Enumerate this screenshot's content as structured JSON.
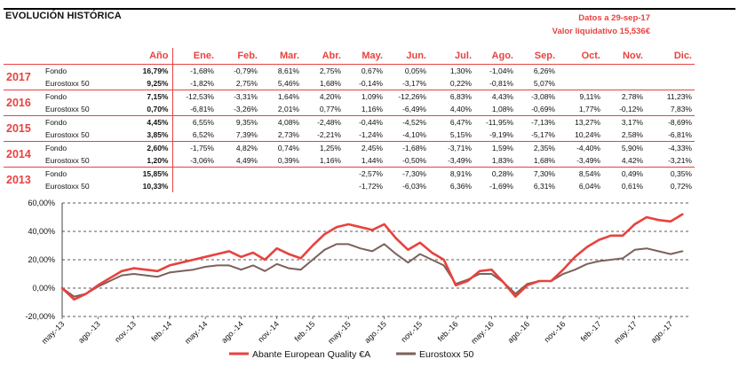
{
  "header": {
    "title": "EVOLUCIÓN HISTÓRICA",
    "date_line": "Datos a 29-sep-17",
    "nav_line": "Valor liquidativo 15,536€"
  },
  "table": {
    "columns": [
      "Año",
      "Ene.",
      "Feb.",
      "Mar.",
      "Abr.",
      "May.",
      "Jun.",
      "Jul.",
      "Ago.",
      "Sep.",
      "Oct.",
      "Nov.",
      "Dic."
    ],
    "groups": [
      {
        "year": "2017",
        "rows": [
          {
            "name": "Fondo",
            "values": [
              "16,79%",
              "-1,68%",
              "-0,79%",
              "8,61%",
              "2,75%",
              "0,67%",
              "0,05%",
              "1,30%",
              "-1,04%",
              "6,26%",
              "",
              "",
              ""
            ]
          },
          {
            "name": "Eurostoxx 50",
            "values": [
              "9,25%",
              "-1,82%",
              "2,75%",
              "5,46%",
              "1,68%",
              "-0,14%",
              "-3,17%",
              "0,22%",
              "-0,81%",
              "5,07%",
              "",
              "",
              ""
            ]
          }
        ]
      },
      {
        "year": "2016",
        "rows": [
          {
            "name": "Fondo",
            "values": [
              "7,15%",
              "-12,53%",
              "-3,31%",
              "1,64%",
              "4,20%",
              "1,09%",
              "-12,26%",
              "6,83%",
              "4,43%",
              "-3,08%",
              "9,11%",
              "2,78%",
              "11,23%"
            ]
          },
          {
            "name": "Eurostoxx 50",
            "values": [
              "0,70%",
              "-6,81%",
              "-3,26%",
              "2,01%",
              "0,77%",
              "1,16%",
              "-6,49%",
              "4,40%",
              "1,08%",
              "-0,69%",
              "1,77%",
              "-0,12%",
              "7,83%"
            ]
          }
        ]
      },
      {
        "year": "2015",
        "rows": [
          {
            "name": "Fondo",
            "values": [
              "4,45%",
              "6,55%",
              "9,35%",
              "4,08%",
              "-2,48%",
              "-0,44%",
              "-4,52%",
              "6,47%",
              "-11,95%",
              "-7,13%",
              "13,27%",
              "3,17%",
              "-8,69%"
            ]
          },
          {
            "name": "Eurostoxx 50",
            "values": [
              "3,85%",
              "6,52%",
              "7,39%",
              "2,73%",
              "-2,21%",
              "-1,24%",
              "-4,10%",
              "5,15%",
              "-9,19%",
              "-5,17%",
              "10,24%",
              "2,58%",
              "-6,81%"
            ]
          }
        ]
      },
      {
        "year": "2014",
        "rows": [
          {
            "name": "Fondo",
            "values": [
              "2,60%",
              "-1,75%",
              "4,82%",
              "0,74%",
              "1,25%",
              "2,45%",
              "-1,68%",
              "-3,71%",
              "1,59%",
              "2,35%",
              "-4,40%",
              "5,90%",
              "-4,33%"
            ]
          },
          {
            "name": "Eurostoxx 50",
            "values": [
              "1,20%",
              "-3,06%",
              "4,49%",
              "0,39%",
              "1,16%",
              "1,44%",
              "-0,50%",
              "-3,49%",
              "1,83%",
              "1,68%",
              "-3,49%",
              "4,42%",
              "-3,21%"
            ]
          }
        ]
      },
      {
        "year": "2013",
        "rows": [
          {
            "name": "Fondo",
            "values": [
              "15,85%",
              "",
              "",
              "",
              "",
              "-2,57%",
              "-7,30%",
              "8,91%",
              "0,28%",
              "7,30%",
              "8,54%",
              "0,49%",
              "0,35%"
            ]
          },
          {
            "name": "Eurostoxx 50",
            "values": [
              "10,33%",
              "",
              "",
              "",
              "",
              "-1,72%",
              "-6,03%",
              "6,36%",
              "-1,69%",
              "6,31%",
              "6,04%",
              "0,61%",
              "0,72%"
            ]
          }
        ]
      }
    ]
  },
  "chart_data": {
    "type": "line",
    "title": "",
    "xlabel": "",
    "ylabel": "",
    "ylim": [
      -20,
      60
    ],
    "y_ticks": [
      "60,00%",
      "40,00%",
      "20,00%",
      "0,00%",
      "-20,00%"
    ],
    "y_tick_values": [
      60,
      40,
      20,
      0,
      -20
    ],
    "grid": "horizontal-dashed",
    "x_ticks": [
      "may.-13",
      "ago.-13",
      "nov.-13",
      "feb.-14",
      "may.-14",
      "ago.-14",
      "nov.-14",
      "feb.-15",
      "may.-15",
      "ago.-15",
      "nov.-15",
      "feb.-16",
      "may.-16",
      "ago.-16",
      "nov.-16",
      "feb.-17",
      "may.-17",
      "ago.-17"
    ],
    "x_labels": [
      "may.-13",
      "jun.-13",
      "jul.-13",
      "ago.-13",
      "sep.-13",
      "oct.-13",
      "nov.-13",
      "dic.-13",
      "ene.-14",
      "feb.-14",
      "mar.-14",
      "abr.-14",
      "may.-14",
      "jun.-14",
      "jul.-14",
      "ago.-14",
      "sep.-14",
      "oct.-14",
      "nov.-14",
      "dic.-14",
      "ene.-15",
      "feb.-15",
      "mar.-15",
      "abr.-15",
      "may.-15",
      "jun.-15",
      "jul.-15",
      "ago.-15",
      "sep.-15",
      "oct.-15",
      "nov.-15",
      "dic.-15",
      "ene.-16",
      "feb.-16",
      "mar.-16",
      "abr.-16",
      "may.-16",
      "jun.-16",
      "jul.-16",
      "ago.-16",
      "sep.-16",
      "oct.-16",
      "nov.-16",
      "dic.-16",
      "ene.-17",
      "feb.-17",
      "mar.-17",
      "abr.-17",
      "may.-17",
      "jun.-17",
      "jul.-17",
      "ago.-17",
      "sep.-17"
    ],
    "x": [
      0,
      1,
      2,
      3,
      4,
      5,
      6,
      7,
      8,
      9,
      10,
      11,
      12,
      13,
      14,
      15,
      16,
      17,
      18,
      19,
      20,
      21,
      22,
      23,
      24,
      25,
      26,
      27,
      28,
      29,
      30,
      31,
      32,
      33,
      34,
      35,
      36,
      37,
      38,
      39,
      40,
      41,
      42,
      43,
      44,
      45,
      46,
      47,
      48,
      49,
      50,
      51,
      52
    ],
    "x_range": [
      0,
      52.5
    ],
    "series": [
      {
        "name": "Abante European Quality €A",
        "color": "#e8423f",
        "values": [
          0,
          -8,
          -4,
          2,
          7,
          12,
          14,
          13,
          12,
          16,
          18,
          20,
          22,
          24,
          26,
          22,
          25,
          20,
          28,
          24,
          21,
          30,
          38,
          43,
          45,
          43,
          41,
          45,
          35,
          27,
          32,
          25,
          20,
          2,
          5,
          12,
          13,
          4,
          -6,
          2,
          5,
          5,
          13,
          22,
          29,
          34,
          37,
          37,
          45,
          50,
          48,
          47,
          52
        ]
      },
      {
        "name": "Eurostoxx 50",
        "color": "#7b615a",
        "values": [
          0,
          -6,
          -4,
          1,
          5,
          9,
          10,
          9,
          8,
          11,
          12,
          13,
          15,
          16,
          16,
          13,
          16,
          12,
          17,
          14,
          13,
          20,
          27,
          31,
          31,
          28,
          26,
          31,
          24,
          18,
          24,
          20,
          16,
          3,
          6,
          10,
          10,
          4,
          -4,
          3,
          5,
          5,
          10,
          13,
          17,
          19,
          20,
          21,
          27,
          28,
          26,
          24,
          26
        ]
      }
    ],
    "legend": [
      "Abante European Quality €A",
      "Eurostoxx 50"
    ],
    "legend_position": "bottom"
  }
}
